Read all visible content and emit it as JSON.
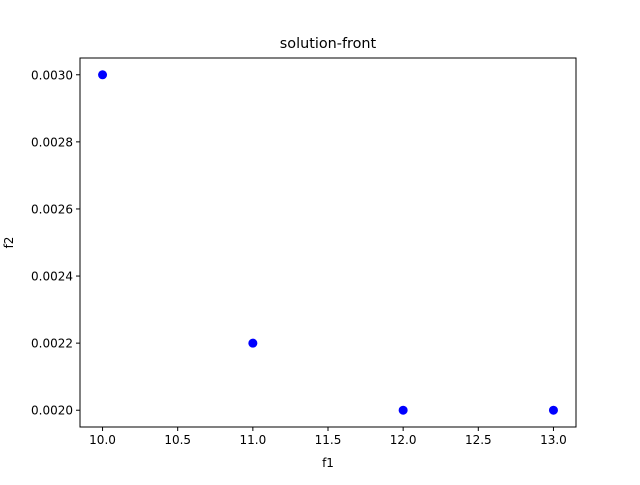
{
  "chart_data": {
    "type": "scatter",
    "title": "solution-front",
    "xlabel": "f1",
    "ylabel": "f2",
    "xlim": [
      9.85,
      13.15
    ],
    "ylim": [
      0.00195,
      0.00305
    ],
    "x_ticks": [
      10.0,
      10.5,
      11.0,
      11.5,
      12.0,
      12.5,
      13.0
    ],
    "x_tick_labels": [
      "10.0",
      "10.5",
      "11.0",
      "11.5",
      "12.0",
      "12.5",
      "13.0"
    ],
    "y_ticks": [
      0.002,
      0.0022,
      0.0024,
      0.0026,
      0.0028,
      0.003
    ],
    "y_tick_labels": [
      "0.0020",
      "0.0022",
      "0.0024",
      "0.0026",
      "0.0028",
      "0.0030"
    ],
    "grid": false,
    "series": [
      {
        "color": "#0000ff",
        "marker": "circle",
        "points": [
          {
            "x": 10.0,
            "y": 0.003
          },
          {
            "x": 11.0,
            "y": 0.0022
          },
          {
            "x": 12.0,
            "y": 0.002
          },
          {
            "x": 13.0,
            "y": 0.002
          }
        ]
      }
    ]
  }
}
